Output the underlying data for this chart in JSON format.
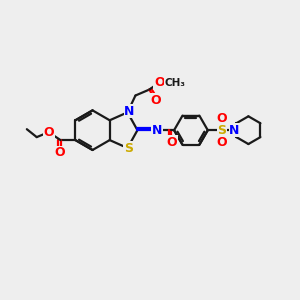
{
  "background_color": "#eeeeee",
  "colors": {
    "bond": "#1a1a1a",
    "N": "#0000ff",
    "O": "#ff0000",
    "S": "#ccaa00"
  },
  "figsize": [
    3.0,
    3.0
  ],
  "dpi": 100
}
